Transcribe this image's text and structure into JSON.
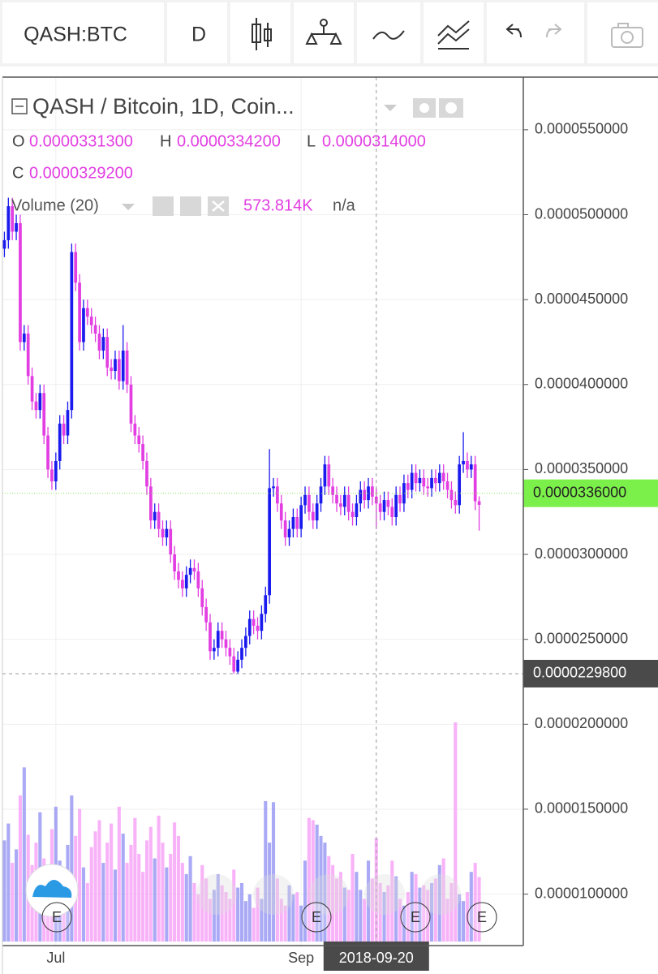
{
  "toolbar": {
    "symbol": "QASH:BTC",
    "interval": "D"
  },
  "legend": {
    "title": "QASH / Bitcoin, 1D, Coin...",
    "ohlc": [
      {
        "key": "O",
        "text": "0.0000331300"
      },
      {
        "key": "H",
        "text": "0.0000334200"
      },
      {
        "key": "L",
        "text": "0.0000314000"
      },
      {
        "key": "C",
        "text": "0.0000329200"
      }
    ],
    "volume_title": "Volume (20)",
    "volume_value": "573.814K",
    "volume_extra": "n/a"
  },
  "events": [
    "E",
    "E",
    "E",
    "E"
  ],
  "chart_data": {
    "type": "candlestick",
    "up_color": "#1a1aee",
    "down_color": "#e23ee2",
    "volume_up_color": "#8c8cf2",
    "volume_down_color": "#f59af5",
    "grid": true,
    "ylim": [
      6.97e-06,
      5.81e-05
    ],
    "yticks": [
      {
        "value": 5.5e-05,
        "label": "0.0000550000"
      },
      {
        "value": 5e-05,
        "label": "0.0000500000"
      },
      {
        "value": 4.5e-05,
        "label": "0.0000450000"
      },
      {
        "value": 4e-05,
        "label": "0.0000400000"
      },
      {
        "value": 3.5e-05,
        "label": "0.0000350000"
      },
      {
        "value": 3e-05,
        "label": "0.0000300000"
      },
      {
        "value": 2.5e-05,
        "label": "0.0000250000"
      },
      {
        "value": 2e-05,
        "label": "0.0000200000"
      },
      {
        "value": 1.5e-05,
        "label": "0.0000150000"
      },
      {
        "value": 1e-05,
        "label": "0.0000100000"
      }
    ],
    "last_price": {
      "value": 3.36e-05,
      "label": "0.0000336000"
    },
    "crosshair_price": {
      "value": 2.298e-05,
      "label": "0.0000229800"
    },
    "categories": [
      null,
      null,
      null,
      null,
      null,
      null,
      null,
      null,
      null,
      null,
      null,
      null,
      null,
      "Jul",
      null,
      null,
      null,
      null,
      null,
      null,
      null,
      null,
      null,
      null,
      null,
      null,
      null,
      null,
      null,
      null,
      null,
      null,
      null,
      null,
      null,
      null,
      null,
      null,
      null,
      null,
      null,
      null,
      null,
      null,
      null,
      null,
      null,
      null,
      null,
      null,
      null,
      null,
      null,
      null,
      null,
      null,
      null,
      null,
      null,
      null,
      null,
      null,
      null,
      null,
      null,
      null,
      null,
      null,
      null,
      null,
      null,
      null,
      null,
      null,
      null,
      "Sep",
      null,
      null,
      null,
      null,
      null,
      null,
      null,
      null,
      null,
      null,
      null,
      null,
      null,
      null,
      null,
      null,
      null,
      null,
      "2018-09-20",
      null,
      null,
      null,
      null,
      null,
      null,
      null,
      null,
      null,
      null,
      null,
      null,
      null,
      null,
      null,
      null,
      null,
      null,
      null,
      null,
      null,
      null,
      null,
      null,
      null,
      null
    ],
    "ohlc": [
      [
        4.8e-05,
        4.9e-05,
        4.75e-05,
        4.85e-05
      ],
      [
        4.85e-05,
        5.1e-05,
        4.8e-05,
        5.05e-05
      ],
      [
        5.05e-05,
        5.1e-05,
        4.85e-05,
        4.9e-05
      ],
      [
        4.9e-05,
        5e-05,
        4.85e-05,
        4.95e-05
      ],
      [
        4.95e-05,
        5e-05,
        4.2e-05,
        4.25e-05
      ],
      [
        4.25e-05,
        4.35e-05,
        4.2e-05,
        4.3e-05
      ],
      [
        4.3e-05,
        4.35e-05,
        4e-05,
        4.05e-05
      ],
      [
        4.05e-05,
        4.1e-05,
        3.85e-05,
        3.9e-05
      ],
      [
        3.9e-05,
        3.95e-05,
        3.8e-05,
        3.85e-05
      ],
      [
        3.85e-05,
        4e-05,
        3.8e-05,
        3.95e-05
      ],
      [
        3.95e-05,
        4e-05,
        3.65e-05,
        3.7e-05
      ],
      [
        3.7e-05,
        3.75e-05,
        3.45e-05,
        3.5e-05
      ],
      [
        3.5e-05,
        3.55e-05,
        3.38e-05,
        3.43e-05
      ],
      [
        3.43e-05,
        3.6e-05,
        3.38e-05,
        3.55e-05
      ],
      [
        3.55e-05,
        3.82e-05,
        3.5e-05,
        3.77e-05
      ],
      [
        3.77e-05,
        3.82e-05,
        3.65e-05,
        3.7e-05
      ],
      [
        3.7e-05,
        3.9e-05,
        3.65e-05,
        3.85e-05
      ],
      [
        3.85e-05,
        4.83e-05,
        3.8e-05,
        4.78e-05
      ],
      [
        4.78e-05,
        4.83e-05,
        4.55e-05,
        4.6e-05
      ],
      [
        4.6e-05,
        4.65e-05,
        4.2e-05,
        4.25e-05
      ],
      [
        4.25e-05,
        4.5e-05,
        4.2e-05,
        4.45e-05
      ],
      [
        4.45e-05,
        4.5e-05,
        4.35e-05,
        4.4e-05
      ],
      [
        4.4e-05,
        4.45e-05,
        4.3e-05,
        4.35e-05
      ],
      [
        4.35e-05,
        4.4e-05,
        4.25e-05,
        4.3e-05
      ],
      [
        4.3e-05,
        4.35e-05,
        4.15e-05,
        4.2e-05
      ],
      [
        4.2e-05,
        4.33e-05,
        4.15e-05,
        4.28e-05
      ],
      [
        4.28e-05,
        4.33e-05,
        4.05e-05,
        4.1e-05
      ],
      [
        4.1e-05,
        4.15e-05,
        4.03e-05,
        4.08e-05
      ],
      [
        4.08e-05,
        4.2e-05,
        4.03e-05,
        4.15e-05
      ],
      [
        4.15e-05,
        4.2e-05,
        3.97e-05,
        4.02e-05
      ],
      [
        4.02e-05,
        4.35e-05,
        3.97e-05,
        4.2e-05
      ],
      [
        4.2e-05,
        4.25e-05,
        3.95e-05,
        4e-05
      ],
      [
        4e-05,
        4.05e-05,
        3.72e-05,
        3.77e-05
      ],
      [
        3.77e-05,
        3.82e-05,
        3.65e-05,
        3.7e-05
      ],
      [
        3.7e-05,
        3.75e-05,
        3.6e-05,
        3.65e-05
      ],
      [
        3.65e-05,
        3.7e-05,
        3.5e-05,
        3.55e-05
      ],
      [
        3.55e-05,
        3.6e-05,
        3.35e-05,
        3.4e-05
      ],
      [
        3.4e-05,
        3.45e-05,
        3.15e-05,
        3.2e-05
      ],
      [
        3.2e-05,
        3.3e-05,
        3.15e-05,
        3.25e-05
      ],
      [
        3.25e-05,
        3.3e-05,
        3.1e-05,
        3.15e-05
      ],
      [
        3.15e-05,
        3.2e-05,
        3.05e-05,
        3.1e-05
      ],
      [
        3.1e-05,
        3.2e-05,
        3.05e-05,
        3.15e-05
      ],
      [
        3.15e-05,
        3.2e-05,
        2.95e-05,
        3e-05
      ],
      [
        3e-05,
        3.05e-05,
        2.85e-05,
        2.9e-05
      ],
      [
        2.9e-05,
        2.95e-05,
        2.8e-05,
        2.85e-05
      ],
      [
        2.85e-05,
        2.9e-05,
        2.75e-05,
        2.8e-05
      ],
      [
        2.8e-05,
        2.93e-05,
        2.75e-05,
        2.88e-05
      ],
      [
        2.88e-05,
        2.97e-05,
        2.83e-05,
        2.92e-05
      ],
      [
        2.92e-05,
        2.97e-05,
        2.85e-05,
        2.9e-05
      ],
      [
        2.9e-05,
        2.95e-05,
        2.75e-05,
        2.8e-05
      ],
      [
        2.8e-05,
        2.85e-05,
        2.64e-05,
        2.69e-05
      ],
      [
        2.69e-05,
        2.74e-05,
        2.55e-05,
        2.6e-05
      ],
      [
        2.6e-05,
        2.65e-05,
        2.38e-05,
        2.43e-05
      ],
      [
        2.43e-05,
        2.5e-05,
        2.38e-05,
        2.45e-05
      ],
      [
        2.45e-05,
        2.6e-05,
        2.4e-05,
        2.55e-05
      ],
      [
        2.55e-05,
        2.6e-05,
        2.45e-05,
        2.5e-05
      ],
      [
        2.5e-05,
        2.55e-05,
        2.4e-05,
        2.45e-05
      ],
      [
        2.45e-05,
        2.5e-05,
        2.35e-05,
        2.4e-05
      ],
      [
        2.4e-05,
        2.45e-05,
        2.298e-05,
        2.31e-05
      ],
      [
        2.31e-05,
        2.43e-05,
        2.3e-05,
        2.38e-05
      ],
      [
        2.38e-05,
        2.5e-05,
        2.33e-05,
        2.45e-05
      ],
      [
        2.45e-05,
        2.57e-05,
        2.4e-05,
        2.52e-05
      ],
      [
        2.52e-05,
        2.67e-05,
        2.47e-05,
        2.62e-05
      ],
      [
        2.62e-05,
        2.67e-05,
        2.53e-05,
        2.58e-05
      ],
      [
        2.58e-05,
        2.63e-05,
        2.5e-05,
        2.55e-05
      ],
      [
        2.55e-05,
        2.7e-05,
        2.5e-05,
        2.65e-05
      ],
      [
        2.65e-05,
        2.81e-05,
        2.6e-05,
        2.76e-05
      ],
      [
        2.76e-05,
        3.62e-05,
        2.71e-05,
        3.39e-05
      ],
      [
        3.39e-05,
        3.45e-05,
        3.34e-05,
        3.4e-05
      ],
      [
        3.4e-05,
        3.45e-05,
        3.25e-05,
        3.3e-05
      ],
      [
        3.3e-05,
        3.35e-05,
        3.15e-05,
        3.2e-05
      ],
      [
        3.2e-05,
        3.25e-05,
        3.05e-05,
        3.1e-05
      ],
      [
        3.1e-05,
        3.2e-05,
        3.05e-05,
        3.15e-05
      ],
      [
        3.15e-05,
        3.27e-05,
        3.1e-05,
        3.22e-05
      ],
      [
        3.22e-05,
        3.27e-05,
        3.1e-05,
        3.15e-05
      ],
      [
        3.15e-05,
        3.34e-05,
        3.1e-05,
        3.29e-05
      ],
      [
        3.29e-05,
        3.4e-05,
        3.24e-05,
        3.35e-05
      ],
      [
        3.35e-05,
        3.4e-05,
        3.2e-05,
        3.25e-05
      ],
      [
        3.25e-05,
        3.3e-05,
        3.15e-05,
        3.2e-05
      ],
      [
        3.2e-05,
        3.35e-05,
        3.15e-05,
        3.3e-05
      ],
      [
        3.3e-05,
        3.45e-05,
        3.25e-05,
        3.4e-05
      ],
      [
        3.4e-05,
        3.58e-05,
        3.35e-05,
        3.53e-05
      ],
      [
        3.53e-05,
        3.58e-05,
        3.35e-05,
        3.4e-05
      ],
      [
        3.4e-05,
        3.45e-05,
        3.3e-05,
        3.35e-05
      ],
      [
        3.35e-05,
        3.4e-05,
        3.25e-05,
        3.3e-05
      ],
      [
        3.3e-05,
        3.35e-05,
        3.23e-05,
        3.28e-05
      ],
      [
        3.28e-05,
        3.4e-05,
        3.23e-05,
        3.35e-05
      ],
      [
        3.35e-05,
        3.4e-05,
        3.2e-05,
        3.25e-05
      ],
      [
        3.25e-05,
        3.3e-05,
        3.17e-05,
        3.22e-05
      ],
      [
        3.22e-05,
        3.35e-05,
        3.17e-05,
        3.3e-05
      ],
      [
        3.3e-05,
        3.43e-05,
        3.25e-05,
        3.38e-05
      ],
      [
        3.38e-05,
        3.43e-05,
        3.27e-05,
        3.32e-05
      ],
      [
        3.32e-05,
        3.45e-05,
        3.27e-05,
        3.4e-05
      ],
      [
        3.4e-05,
        3.45e-05,
        3.29e-05,
        3.34e-05
      ],
      [
        3.34e-05,
        3.39e-05,
        3.15e-05,
        3.3e-05
      ],
      [
        3.3e-05,
        3.35e-05,
        3.2e-05,
        3.25e-05
      ],
      [
        3.25e-05,
        3.37e-05,
        3.2e-05,
        3.32e-05
      ],
      [
        3.32e-05,
        3.37e-05,
        3.23e-05,
        3.28e-05
      ],
      [
        3.28e-05,
        3.33e-05,
        3.17e-05,
        3.22e-05
      ],
      [
        3.22e-05,
        3.4e-05,
        3.17e-05,
        3.35e-05
      ],
      [
        3.35e-05,
        3.4e-05,
        3.25e-05,
        3.3e-05
      ],
      [
        3.3e-05,
        3.47e-05,
        3.25e-05,
        3.42e-05
      ],
      [
        3.42e-05,
        3.47e-05,
        3.33e-05,
        3.38e-05
      ],
      [
        3.38e-05,
        3.53e-05,
        3.33e-05,
        3.48e-05
      ],
      [
        3.48e-05,
        3.53e-05,
        3.37e-05,
        3.42e-05
      ],
      [
        3.42e-05,
        3.5e-05,
        3.37e-05,
        3.45e-05
      ],
      [
        3.45e-05,
        3.5e-05,
        3.35e-05,
        3.4e-05
      ],
      [
        3.4e-05,
        3.45e-05,
        3.34e-05,
        3.39e-05
      ],
      [
        3.39e-05,
        3.5e-05,
        3.34e-05,
        3.45e-05
      ],
      [
        3.45e-05,
        3.5e-05,
        3.37e-05,
        3.42e-05
      ],
      [
        3.42e-05,
        3.53e-05,
        3.37e-05,
        3.48e-05
      ],
      [
        3.48e-05,
        3.53e-05,
        3.38e-05,
        3.43e-05
      ],
      [
        3.43e-05,
        3.48e-05,
        3.33e-05,
        3.38e-05
      ],
      [
        3.38e-05,
        3.43e-05,
        3.27e-05,
        3.32e-05
      ],
      [
        3.32e-05,
        3.37e-05,
        3.24e-05,
        3.29e-05
      ],
      [
        3.29e-05,
        3.58e-05,
        3.24e-05,
        3.53e-05
      ],
      [
        3.53e-05,
        3.72e-05,
        3.48e-05,
        3.55e-05
      ],
      [
        3.55e-05,
        3.6e-05,
        3.45e-05,
        3.5e-05
      ],
      [
        3.5e-05,
        3.58e-05,
        3.45e-05,
        3.53e-05
      ],
      [
        3.53e-05,
        3.58e-05,
        3.26e-05,
        3.313e-05
      ],
      [
        3.313e-05,
        3.342e-05,
        3.14e-05,
        3.292e-05
      ]
    ],
    "volume": [
      900,
      1050,
      700,
      820,
      1300,
      1550,
      950,
      680,
      880,
      1150,
      740,
      600,
      1000,
      1200,
      720,
      560,
      860,
      1300,
      940,
      1180,
      660,
      520,
      840,
      980,
      1080,
      700,
      880,
      1050,
      640,
      1200,
      960,
      700,
      860,
      1100,
      780,
      620,
      900,
      1020,
      740,
      1120,
      880,
      660,
      780,
      1060,
      940,
      700,
      600,
      760,
      520,
      420,
      680,
      560,
      380,
      460,
      600,
      500,
      440,
      380,
      640,
      480,
      520,
      360,
      420,
      300,
      480,
      380,
      1250,
      880,
      1240,
      560,
      380,
      320,
      500,
      420,
      440,
      320,
      720,
      1100,
      1080,
      1040,
      940,
      880,
      760,
      680,
      560,
      620,
      480,
      460,
      780,
      620,
      460,
      380,
      720,
      560,
      920,
      520,
      440,
      500,
      720,
      580,
      380,
      320,
      440,
      620,
      600,
      480,
      500,
      460,
      520,
      560,
      680,
      740,
      380,
      520,
      1950,
      420,
      360,
      440,
      620,
      700,
      573.814
    ]
  }
}
